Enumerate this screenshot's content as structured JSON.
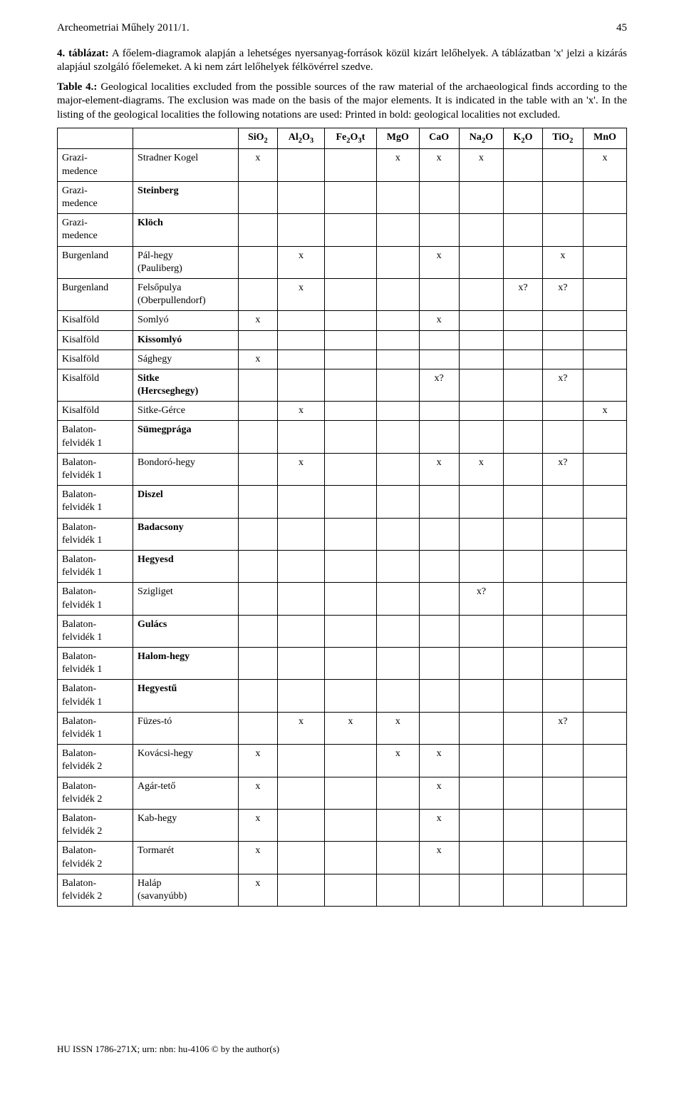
{
  "journal": "Archeometriai Műhely 2011/1.",
  "pageNumber": "45",
  "caption_hu_prefix": "4. táblázat:",
  "caption_hu_rest": " A főelem-diagramok alapján a lehetséges nyersanyag-források közül kizárt lelőhelyek. A táblázatban 'x' jelzi a kizárás alapjául szolgáló főelemeket. A ki nem zárt lelőhelyek félkövérrel szedve.",
  "caption_en_prefix": "Table 4.:",
  "caption_en_rest": " Geological localities excluded from the possible sources of the raw material of the archaeological finds according to the major-element-diagrams. The exclusion was made on the basis of the major elements. It is indicated in the table with an 'x'. In the listing of the geological localities the following notations are used: Printed in bold: geological localities not excluded.",
  "columns": [
    "SiO2",
    "Al2O3",
    "Fe2O3t",
    "MgO",
    "CaO",
    "Na2O",
    "K2O",
    "TiO2",
    "MnO"
  ],
  "columns_html": [
    "SiO<sub>2</sub>",
    "Al<sub>2</sub>O<sub>3</sub>",
    "Fe<sub>2</sub>O<sub>3</sub>t",
    "MgO",
    "CaO",
    "Na<sub>2</sub>O",
    "K<sub>2</sub>O",
    "TiO<sub>2</sub>",
    "MnO"
  ],
  "rows": [
    {
      "region": "Grazi-medence",
      "locality": "Stradner Kogel",
      "bold": false,
      "marks": [
        "x",
        "",
        "",
        "x",
        "x",
        "x",
        "",
        "",
        "x"
      ]
    },
    {
      "region": "Grazi-medence",
      "locality": "Steinberg",
      "bold": true,
      "marks": [
        "",
        "",
        "",
        "",
        "",
        "",
        "",
        "",
        ""
      ]
    },
    {
      "region": "Grazi-medence",
      "locality": "Klöch",
      "bold": true,
      "marks": [
        "",
        "",
        "",
        "",
        "",
        "",
        "",
        "",
        ""
      ]
    },
    {
      "region": "Burgenland",
      "locality": "Pál-hegy (Pauliberg)",
      "bold": false,
      "marks": [
        "",
        "x",
        "",
        "",
        "x",
        "",
        "",
        "x",
        ""
      ]
    },
    {
      "region": "Burgenland",
      "locality": "Felsőpulya (Oberpullendorf)",
      "bold": false,
      "marks": [
        "",
        "x",
        "",
        "",
        "",
        "",
        "x?",
        "x?",
        ""
      ]
    },
    {
      "region": "Kisalföld",
      "locality": "Somlyó",
      "bold": false,
      "marks": [
        "x",
        "",
        "",
        "",
        "x",
        "",
        "",
        "",
        ""
      ]
    },
    {
      "region": "Kisalföld",
      "locality": "Kissomlyó",
      "bold": true,
      "marks": [
        "",
        "",
        "",
        "",
        "",
        "",
        "",
        "",
        ""
      ]
    },
    {
      "region": "Kisalföld",
      "locality": "Sághegy",
      "bold": false,
      "marks": [
        "x",
        "",
        "",
        "",
        "",
        "",
        "",
        "",
        ""
      ]
    },
    {
      "region": "Kisalföld",
      "locality": "Sitke (Hercseghegy)",
      "bold": true,
      "marks": [
        "",
        "",
        "",
        "",
        "x?",
        "",
        "",
        "x?",
        ""
      ]
    },
    {
      "region": "Kisalföld",
      "locality": "Sitke-Gérce",
      "bold": false,
      "marks": [
        "",
        "x",
        "",
        "",
        "",
        "",
        "",
        "",
        "x"
      ]
    },
    {
      "region": "Balaton-felvidék 1",
      "locality": "Sümegprága",
      "bold": true,
      "marks": [
        "",
        "",
        "",
        "",
        "",
        "",
        "",
        "",
        ""
      ]
    },
    {
      "region": "Balaton-felvidék 1",
      "locality": "Bondoró-hegy",
      "bold": false,
      "marks": [
        "",
        "x",
        "",
        "",
        "x",
        "x",
        "",
        "x?",
        ""
      ]
    },
    {
      "region": "Balaton-felvidék 1",
      "locality": "Diszel",
      "bold": true,
      "marks": [
        "",
        "",
        "",
        "",
        "",
        "",
        "",
        "",
        ""
      ]
    },
    {
      "region": "Balaton-felvidék 1",
      "locality": "Badacsony",
      "bold": true,
      "marks": [
        "",
        "",
        "",
        "",
        "",
        "",
        "",
        "",
        ""
      ]
    },
    {
      "region": "Balaton-felvidék 1",
      "locality": "Hegyesd",
      "bold": true,
      "marks": [
        "",
        "",
        "",
        "",
        "",
        "",
        "",
        "",
        ""
      ]
    },
    {
      "region": "Balaton-felvidék 1",
      "locality": "Szigliget",
      "bold": false,
      "marks": [
        "",
        "",
        "",
        "",
        "",
        "x?",
        "",
        "",
        ""
      ]
    },
    {
      "region": "Balaton-felvidék 1",
      "locality": "Gulács",
      "bold": true,
      "marks": [
        "",
        "",
        "",
        "",
        "",
        "",
        "",
        "",
        ""
      ]
    },
    {
      "region": "Balaton-felvidék 1",
      "locality": "Halom-hegy",
      "bold": true,
      "marks": [
        "",
        "",
        "",
        "",
        "",
        "",
        "",
        "",
        ""
      ]
    },
    {
      "region": "Balaton-felvidék 1",
      "locality": "Hegyestű",
      "bold": true,
      "marks": [
        "",
        "",
        "",
        "",
        "",
        "",
        "",
        "",
        ""
      ]
    },
    {
      "region": "Balaton-felvidék 1",
      "locality": "Füzes-tó",
      "bold": false,
      "marks": [
        "",
        "x",
        "x",
        "x",
        "",
        "",
        "",
        "x?",
        ""
      ]
    },
    {
      "region": "Balaton-felvidék 2",
      "locality": "Kovácsi-hegy",
      "bold": false,
      "marks": [
        "x",
        "",
        "",
        "x",
        "x",
        "",
        "",
        "",
        ""
      ]
    },
    {
      "region": "Balaton-felvidék 2",
      "locality": "Agár-tető",
      "bold": false,
      "marks": [
        "x",
        "",
        "",
        "",
        "x",
        "",
        "",
        "",
        ""
      ]
    },
    {
      "region": "Balaton-felvidék 2",
      "locality": "Kab-hegy",
      "bold": false,
      "marks": [
        "x",
        "",
        "",
        "",
        "x",
        "",
        "",
        "",
        ""
      ]
    },
    {
      "region": "Balaton-felvidék 2",
      "locality": "Tormarét",
      "bold": false,
      "marks": [
        "x",
        "",
        "",
        "",
        "x",
        "",
        "",
        "",
        ""
      ]
    },
    {
      "region": "Balaton-felvidék 2",
      "locality": "Haláp (savanyúbb)",
      "bold": false,
      "marks": [
        "x",
        "",
        "",
        "",
        "",
        "",
        "",
        "",
        ""
      ]
    }
  ],
  "footer": "HU ISSN 1786-271X; urn: nbn: hu-4106 © by the author(s)"
}
